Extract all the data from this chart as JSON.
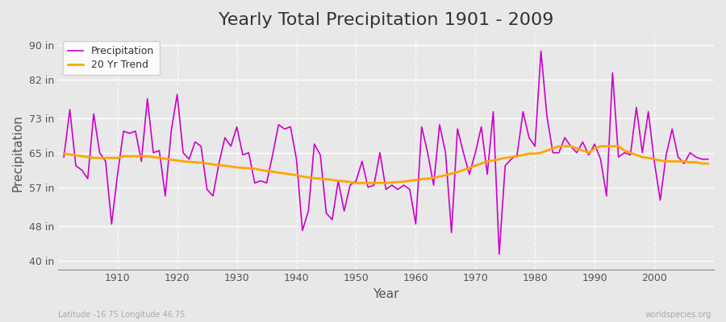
{
  "title": "Yearly Total Precipitation 1901 - 2009",
  "xlabel": "Year",
  "ylabel": "Precipitation",
  "x_label_bottom_left": "Latitude -16.75 Longitude 46.75",
  "x_label_bottom_right": "worldspecies.org",
  "years": [
    1901,
    1902,
    1903,
    1904,
    1905,
    1906,
    1907,
    1908,
    1909,
    1910,
    1911,
    1912,
    1913,
    1914,
    1915,
    1916,
    1917,
    1918,
    1919,
    1920,
    1921,
    1922,
    1923,
    1924,
    1925,
    1926,
    1927,
    1928,
    1929,
    1930,
    1931,
    1932,
    1933,
    1934,
    1935,
    1936,
    1937,
    1938,
    1939,
    1940,
    1941,
    1942,
    1943,
    1944,
    1945,
    1946,
    1947,
    1948,
    1949,
    1950,
    1951,
    1952,
    1953,
    1954,
    1955,
    1956,
    1957,
    1958,
    1959,
    1960,
    1961,
    1962,
    1963,
    1964,
    1965,
    1966,
    1967,
    1968,
    1969,
    1970,
    1971,
    1972,
    1973,
    1974,
    1975,
    1976,
    1977,
    1978,
    1979,
    1980,
    1981,
    1982,
    1983,
    1984,
    1985,
    1986,
    1987,
    1988,
    1989,
    1990,
    1991,
    1992,
    1993,
    1994,
    1995,
    1996,
    1997,
    1998,
    1999,
    2000,
    2001,
    2002,
    2003,
    2004,
    2005,
    2006,
    2007,
    2008,
    2009
  ],
  "precipitation": [
    64.0,
    75.0,
    62.0,
    61.0,
    59.0,
    74.0,
    65.0,
    63.0,
    48.5,
    60.0,
    70.0,
    69.5,
    70.0,
    63.0,
    77.5,
    65.0,
    65.5,
    55.0,
    70.0,
    78.5,
    65.0,
    63.5,
    67.5,
    66.5,
    56.5,
    55.0,
    62.5,
    68.5,
    66.5,
    71.0,
    64.5,
    65.0,
    58.0,
    58.5,
    58.0,
    64.5,
    71.5,
    70.5,
    71.0,
    63.5,
    47.0,
    51.5,
    67.0,
    64.5,
    51.0,
    49.5,
    58.5,
    51.5,
    57.5,
    58.5,
    63.0,
    57.0,
    57.5,
    65.0,
    56.5,
    57.5,
    56.5,
    57.5,
    56.5,
    48.5,
    71.0,
    65.0,
    57.5,
    71.5,
    65.0,
    46.5,
    70.5,
    65.0,
    60.0,
    65.0,
    71.0,
    60.0,
    74.5,
    41.5,
    62.0,
    63.5,
    64.5,
    74.5,
    68.5,
    66.5,
    88.5,
    73.5,
    65.0,
    65.0,
    68.5,
    66.5,
    65.0,
    67.5,
    64.5,
    67.0,
    63.5,
    55.0,
    83.5,
    64.0,
    65.0,
    64.5,
    75.5,
    65.0,
    74.5,
    63.0,
    54.0,
    64.5,
    70.5,
    64.0,
    62.5,
    65.0,
    64.0,
    63.5,
    63.5
  ],
  "trend": [
    64.8,
    64.6,
    64.4,
    64.2,
    64.0,
    63.8,
    63.8,
    63.8,
    63.8,
    63.8,
    64.2,
    64.2,
    64.2,
    64.2,
    64.2,
    64.0,
    63.8,
    63.6,
    63.4,
    63.2,
    63.0,
    62.9,
    62.8,
    62.7,
    62.5,
    62.3,
    62.1,
    62.0,
    61.8,
    61.6,
    61.5,
    61.4,
    61.3,
    61.0,
    60.8,
    60.6,
    60.4,
    60.2,
    60.0,
    59.8,
    59.5,
    59.3,
    59.1,
    59.0,
    58.9,
    58.7,
    58.5,
    58.4,
    58.2,
    58.0,
    58.0,
    58.0,
    58.0,
    58.0,
    58.0,
    58.1,
    58.2,
    58.3,
    58.5,
    58.7,
    58.9,
    59.0,
    59.2,
    59.5,
    59.8,
    60.2,
    60.5,
    61.0,
    61.5,
    62.0,
    62.5,
    63.0,
    63.2,
    63.5,
    63.8,
    64.0,
    64.2,
    64.5,
    64.8,
    64.8,
    65.0,
    65.5,
    66.0,
    66.5,
    66.5,
    66.5,
    66.0,
    65.5,
    65.0,
    66.0,
    66.5,
    66.5,
    66.5,
    66.5,
    65.5,
    65.0,
    64.5,
    64.0,
    63.8,
    63.5,
    63.2,
    63.0,
    63.0,
    63.0,
    63.0,
    62.8,
    62.8,
    62.5,
    62.5
  ],
  "precip_color": "#CC00CC",
  "trend_color": "#FFA500",
  "bg_color": "#E8E8E8",
  "plot_bg_color": "#E8E8E8",
  "grid_color": "#FFFFFF",
  "yticks": [
    40,
    48,
    57,
    65,
    73,
    82,
    90
  ],
  "ytick_labels": [
    "40 in",
    "48 in",
    "57 in",
    "65 in",
    "73 in",
    "82 in",
    "90 in"
  ],
  "ylim": [
    38,
    92
  ],
  "xlim": [
    1900,
    2010
  ],
  "title_fontsize": 16,
  "axis_label_fontsize": 11,
  "tick_fontsize": 9,
  "legend_fontsize": 9
}
